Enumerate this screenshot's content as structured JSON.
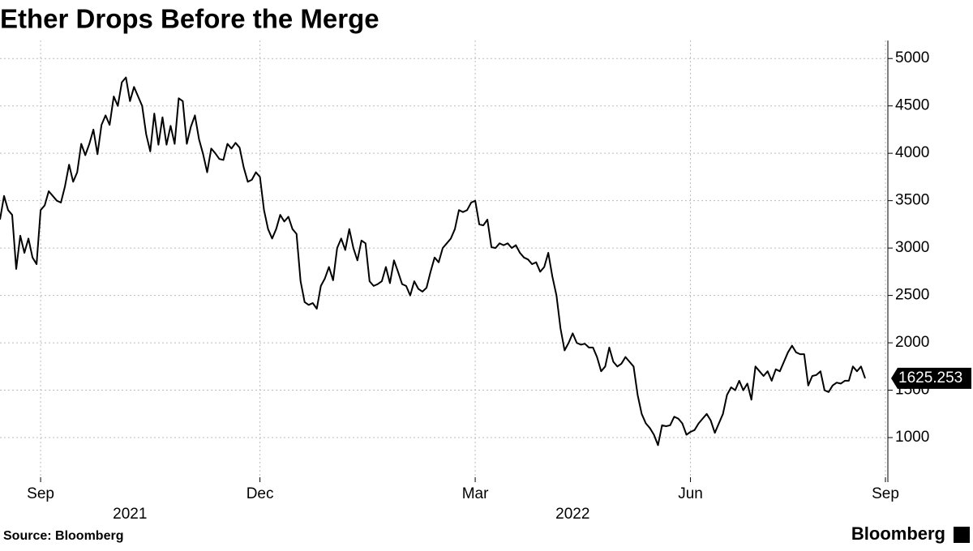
{
  "chart_data": {
    "type": "line",
    "title": "Ether Drops Before the Merge",
    "source": "Source: Bloomberg",
    "logo": "Bloomberg",
    "color": "#000000",
    "grid": true,
    "values": [
      3300,
      3550,
      3400,
      3350,
      2780,
      3130,
      2950,
      3100,
      2900,
      2830,
      3400,
      3450,
      3600,
      3550,
      3500,
      3480,
      3650,
      3880,
      3700,
      3800,
      4100,
      3980,
      4100,
      4250,
      3990,
      4300,
      4400,
      4300,
      4600,
      4500,
      4750,
      4800,
      4550,
      4700,
      4600,
      4500,
      4200,
      4020,
      4420,
      4090,
      4380,
      4090,
      4290,
      4100,
      4580,
      4550,
      4100,
      4280,
      4400,
      4150,
      3990,
      3800,
      4050,
      4000,
      3940,
      3930,
      4100,
      4050,
      4110,
      4060,
      3850,
      3700,
      3720,
      3800,
      3750,
      3400,
      3200,
      3100,
      3200,
      3350,
      3280,
      3330,
      3200,
      3150,
      2650,
      2430,
      2400,
      2420,
      2360,
      2600,
      2680,
      2800,
      2660,
      3000,
      3100,
      2980,
      3200,
      3000,
      2870,
      3080,
      3050,
      2650,
      2600,
      2620,
      2650,
      2800,
      2630,
      2870,
      2750,
      2620,
      2600,
      2500,
      2650,
      2570,
      2540,
      2580,
      2750,
      2900,
      2850,
      3000,
      3050,
      3100,
      3200,
      3400,
      3380,
      3400,
      3480,
      3500,
      3250,
      3240,
      3300,
      3010,
      3000,
      3050,
      3030,
      3050,
      3000,
      3030,
      2950,
      2900,
      2880,
      2830,
      2850,
      2750,
      2800,
      2950,
      2700,
      2500,
      2150,
      1920,
      2000,
      2100,
      2000,
      1980,
      1990,
      1950,
      1950,
      1850,
      1700,
      1750,
      1950,
      1800,
      1750,
      1780,
      1850,
      1800,
      1750,
      1450,
      1250,
      1150,
      1100,
      1030,
      920,
      1130,
      1120,
      1130,
      1220,
      1200,
      1150,
      1030,
      1060,
      1080,
      1150,
      1200,
      1250,
      1180,
      1050,
      1150,
      1250,
      1450,
      1530,
      1500,
      1600,
      1500,
      1570,
      1400,
      1750,
      1700,
      1650,
      1700,
      1600,
      1720,
      1700,
      1800,
      1900,
      1970,
      1900,
      1880,
      1880,
      1550,
      1650,
      1660,
      1700,
      1500,
      1480,
      1550,
      1580,
      1570,
      1600,
      1600,
      1750,
      1700,
      1750,
      1625.253
    ],
    "xlim": [
      0,
      218
    ],
    "xticks": [
      {
        "value": 10,
        "label": "Sep"
      },
      {
        "value": 64,
        "label": "Dec"
      },
      {
        "value": 117,
        "label": "Mar"
      },
      {
        "value": 170,
        "label": "Jun"
      },
      {
        "value": 218,
        "label": "Sep"
      }
    ],
    "year_labels": [
      {
        "value": 32,
        "label": "2021"
      },
      {
        "value": 141,
        "label": "2022"
      }
    ],
    "ylim": [
      530,
      5190
    ],
    "yticks": [
      1000,
      1500,
      2000,
      2500,
      3000,
      3500,
      4000,
      4500,
      5000
    ]
  }
}
